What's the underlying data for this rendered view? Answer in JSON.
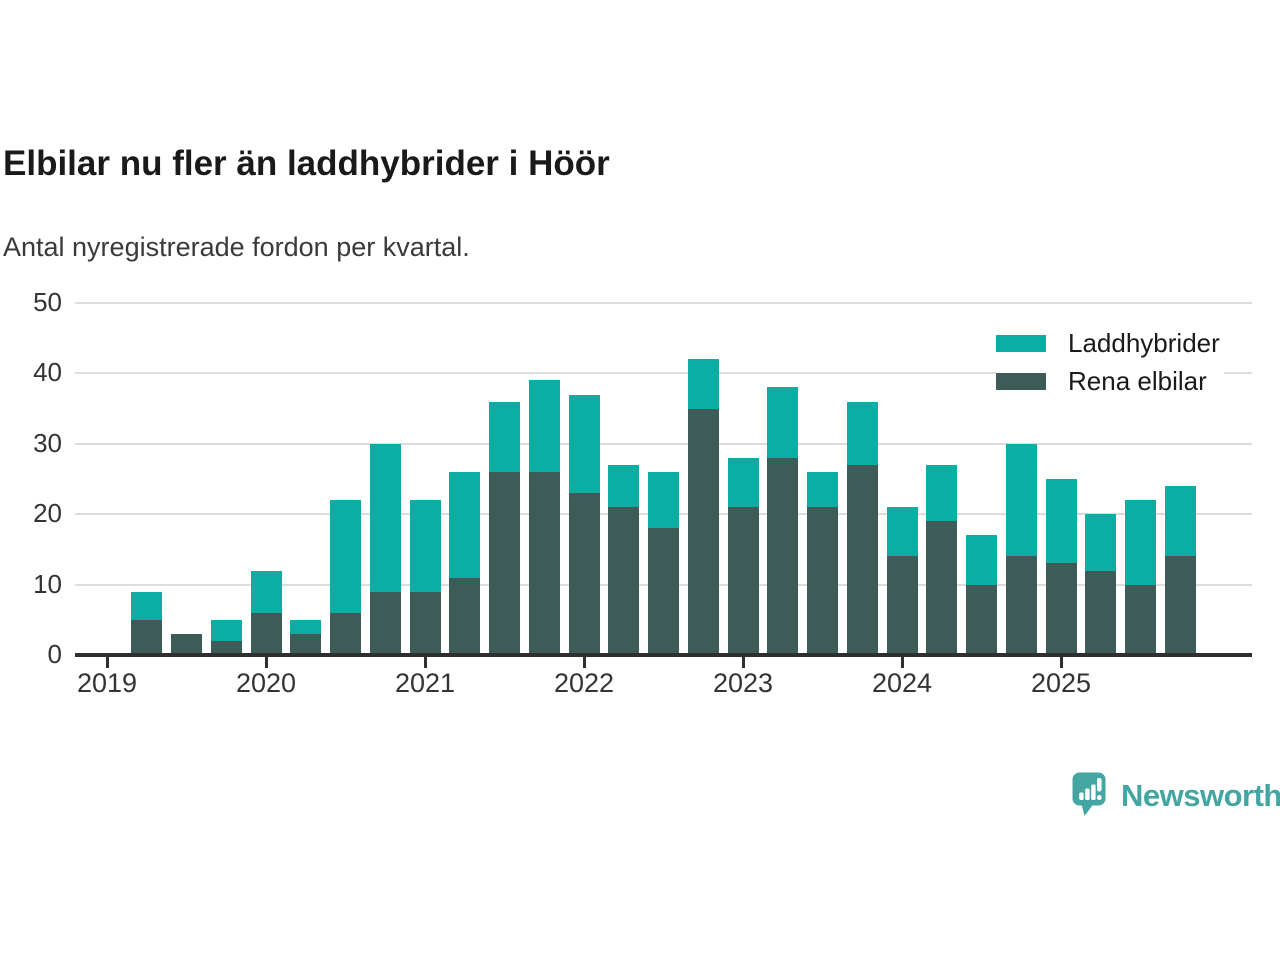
{
  "chart_data": {
    "type": "bar",
    "stacked": true,
    "title": "Elbilar nu fler än laddhybrider i Höör",
    "subtitle": "Antal nyregistrerade fordon per kvartal.",
    "categories": [
      "2019 Q2",
      "2019 Q3",
      "2019 Q4",
      "2020 Q1",
      "2020 Q2",
      "2020 Q3",
      "2020 Q4",
      "2021 Q1",
      "2021 Q2",
      "2021 Q3",
      "2021 Q4",
      "2022 Q1",
      "2022 Q2",
      "2022 Q3",
      "2022 Q4",
      "2023 Q1",
      "2023 Q2",
      "2023 Q3",
      "2023 Q4",
      "2024 Q1",
      "2024 Q2",
      "2024 Q3",
      "2024 Q4",
      "2025 Q1",
      "2025 Q2",
      "2025 Q3",
      "2025 Q4"
    ],
    "series": [
      {
        "name": "Laddhybrider",
        "color": "#0cada3",
        "values": [
          4,
          0,
          3,
          6,
          2,
          16,
          21,
          13,
          15,
          10,
          13,
          14,
          6,
          8,
          7,
          7,
          10,
          5,
          9,
          7,
          8,
          7,
          16,
          12,
          8,
          12,
          10
        ]
      },
      {
        "name": "Rena elbilar",
        "color": "#3d5b57",
        "values": [
          5,
          3,
          2,
          6,
          3,
          6,
          9,
          9,
          11,
          26,
          26,
          23,
          21,
          18,
          35,
          21,
          28,
          21,
          27,
          14,
          19,
          10,
          14,
          13,
          12,
          10,
          14
        ]
      }
    ],
    "totals": [
      9,
      3,
      5,
      12,
      5,
      22,
      30,
      22,
      26,
      36,
      39,
      37,
      27,
      26,
      42,
      28,
      38,
      26,
      36,
      21,
      27,
      17,
      30,
      25,
      20,
      22,
      24
    ],
    "xtick_labels": [
      "2019",
      "2020",
      "2021",
      "2022",
      "2023",
      "2024",
      "2025"
    ],
    "yticks": [
      0,
      10,
      20,
      30,
      40,
      50
    ],
    "ylim": [
      0,
      50
    ],
    "grid": "horizontal",
    "legend_position": "top-right"
  },
  "branding": {
    "logo_text": "Newsworthy",
    "logo_color": "#43a6a2"
  }
}
